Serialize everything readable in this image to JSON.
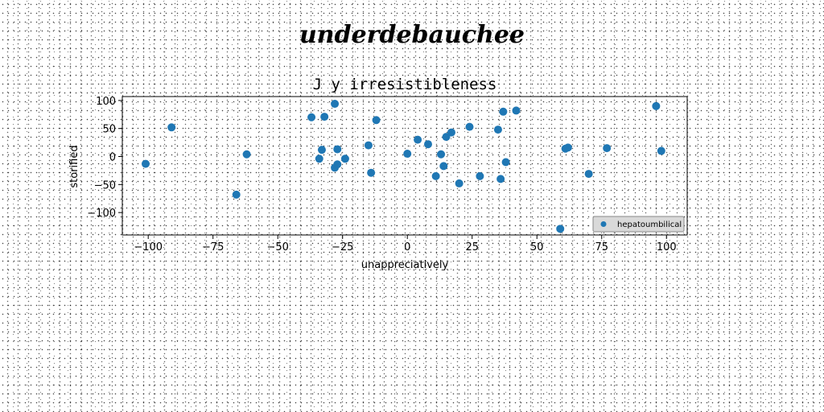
{
  "figure": {
    "suptitle": "underdebauchee"
  },
  "chart_data": {
    "type": "scatter",
    "title": "J y irresistibleness",
    "xlabel": "unappreciatively",
    "ylabel": "storified",
    "xlim": [
      -110,
      108
    ],
    "ylim": [
      -140,
      107
    ],
    "xticks": [
      -100,
      -75,
      -50,
      -25,
      0,
      25,
      50,
      75,
      100
    ],
    "xtick_labels": [
      "−100",
      "−75",
      "−50",
      "−25",
      "0",
      "25",
      "50",
      "75",
      "100"
    ],
    "yticks": [
      -100,
      -50,
      0,
      50,
      100
    ],
    "ytick_labels": [
      "−100",
      "−50",
      "0",
      "50",
      "100"
    ],
    "grid": false,
    "legend": {
      "position": "lower-right",
      "entries": [
        "hepatoumbilical"
      ]
    },
    "series": [
      {
        "name": "hepatoumbilical",
        "color": "#1f77b4",
        "points": [
          [
            -101,
            -13
          ],
          [
            -91,
            52
          ],
          [
            -66,
            -68
          ],
          [
            -62,
            4
          ],
          [
            -37,
            70
          ],
          [
            -34,
            -4
          ],
          [
            -33,
            12
          ],
          [
            -32,
            71
          ],
          [
            -28,
            94
          ],
          [
            -28,
            -20
          ],
          [
            -27,
            13
          ],
          [
            -27,
            -14
          ],
          [
            -24,
            -4
          ],
          [
            -15,
            20
          ],
          [
            -14,
            -29
          ],
          [
            -12,
            65
          ],
          [
            0,
            5
          ],
          [
            4,
            30
          ],
          [
            8,
            22
          ],
          [
            11,
            -35
          ],
          [
            13,
            4
          ],
          [
            14,
            -17
          ],
          [
            15,
            35
          ],
          [
            17,
            43
          ],
          [
            20,
            -48
          ],
          [
            24,
            53
          ],
          [
            28,
            -35
          ],
          [
            35,
            48
          ],
          [
            36,
            -40
          ],
          [
            37,
            80
          ],
          [
            38,
            -10
          ],
          [
            42,
            82
          ],
          [
            59,
            -129
          ],
          [
            61,
            14
          ],
          [
            62,
            16
          ],
          [
            70,
            -31
          ],
          [
            77,
            15
          ],
          [
            96,
            90
          ],
          [
            98,
            10
          ]
        ]
      }
    ]
  }
}
